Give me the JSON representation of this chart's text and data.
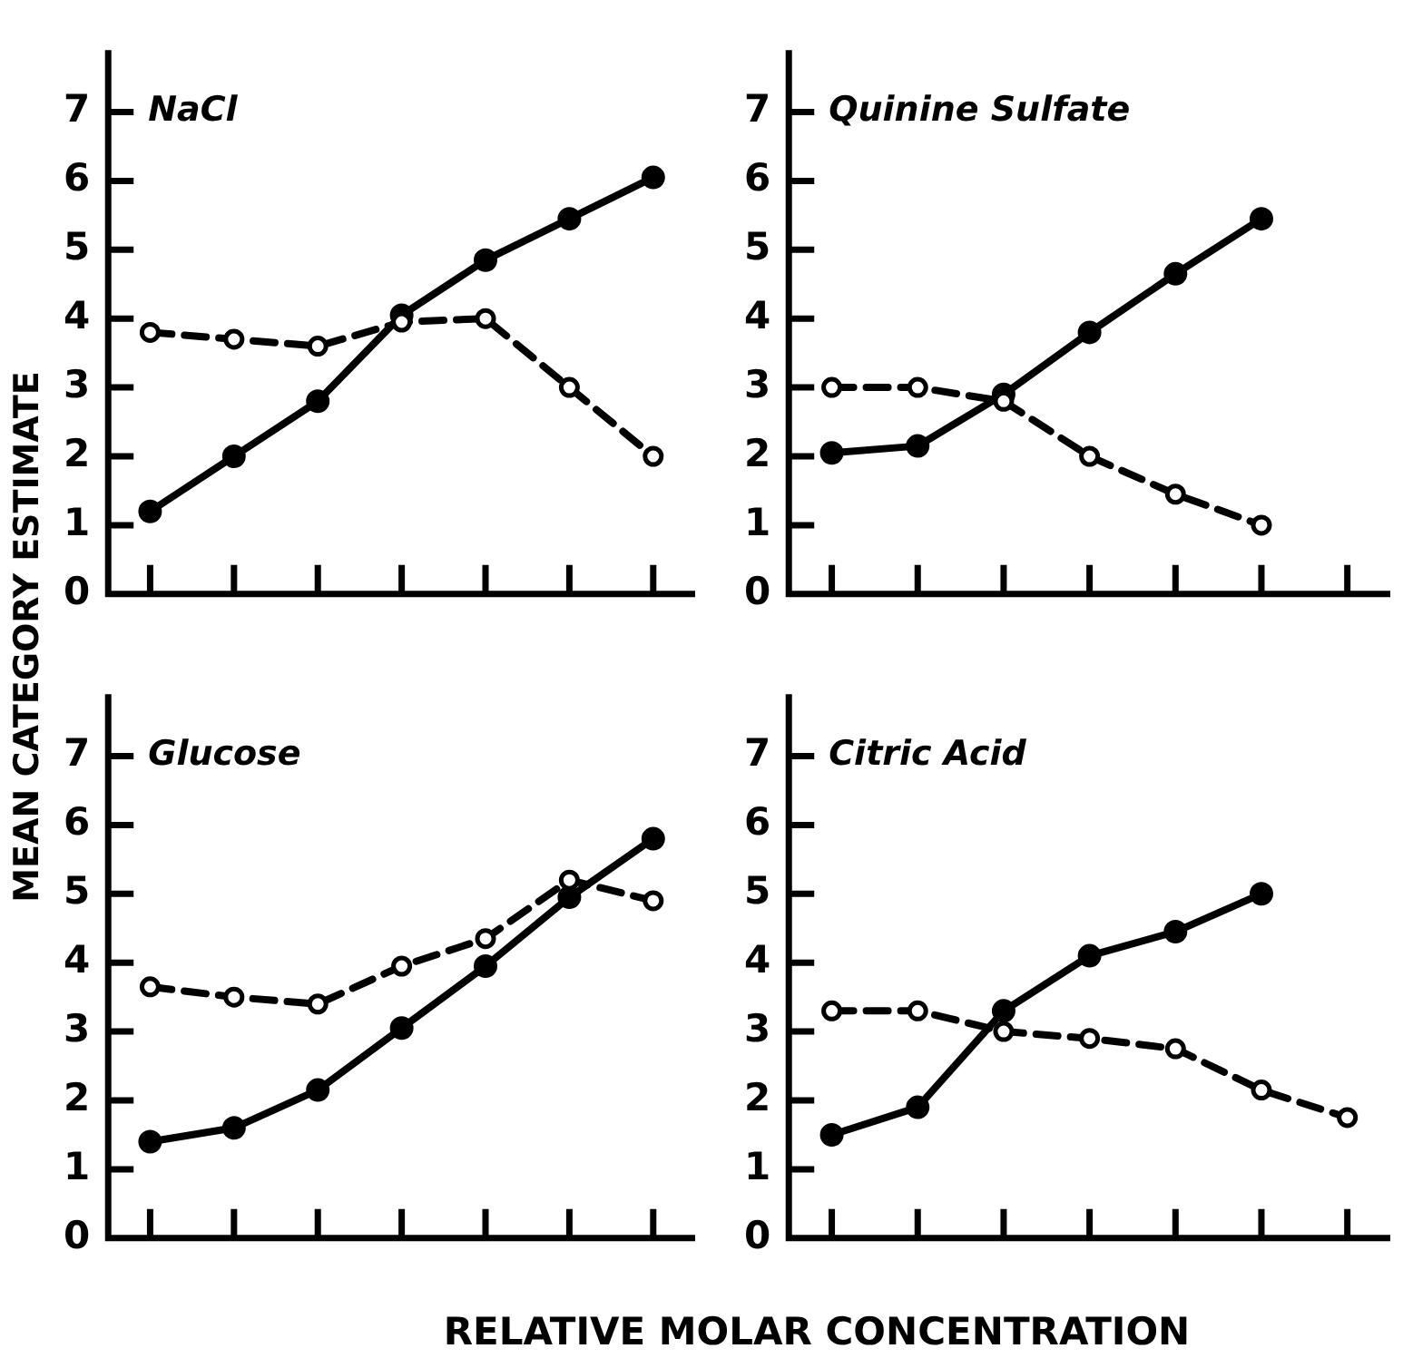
{
  "chart_data": [
    {
      "type": "line",
      "title": "NaCl",
      "ylabel": "MEAN CATEGORY ESTIMATE",
      "categories": [
        null,
        null,
        null,
        null,
        null,
        null,
        null
      ],
      "ylim": [
        0,
        7.9
      ],
      "yticks": [
        0,
        1,
        2,
        3,
        4,
        5,
        6,
        7
      ],
      "tick_labels": "y",
      "grid": false,
      "legend": false,
      "marker": "circle",
      "series": [
        {
          "color": "#000000",
          "line_style": "solid",
          "values": [
            1.2,
            2.0,
            2.8,
            4.05,
            4.85,
            5.45,
            6.05
          ]
        },
        {
          "color": "#000000",
          "line_style": "dashed",
          "values": [
            3.8,
            3.7,
            3.6,
            3.95,
            4.0,
            3.0,
            2.0
          ]
        }
      ]
    },
    {
      "type": "line",
      "title": "Quinine Sulfate",
      "categories": [
        null,
        null,
        null,
        null,
        null,
        null,
        null
      ],
      "ylim": [
        0,
        7.9
      ],
      "yticks": [
        0,
        1,
        2,
        3,
        4,
        5,
        6,
        7
      ],
      "tick_labels": "y",
      "grid": false,
      "legend": false,
      "marker": "circle",
      "series": [
        {
          "color": "#000000",
          "line_style": "solid",
          "values": [
            2.05,
            2.15,
            2.9,
            3.8,
            4.65,
            5.45,
            null
          ]
        },
        {
          "color": "#000000",
          "line_style": "dashed",
          "values": [
            3.0,
            3.0,
            2.8,
            2.0,
            1.45,
            1.0,
            null
          ]
        }
      ]
    },
    {
      "type": "line",
      "title": "Glucose",
      "xlabel": "RELATIVE MOLAR CONCENTRATION",
      "categories": [
        null,
        null,
        null,
        null,
        null,
        null,
        null
      ],
      "ylim": [
        0,
        7.9
      ],
      "yticks": [
        0,
        1,
        2,
        3,
        4,
        5,
        6,
        7
      ],
      "tick_labels": "y",
      "grid": false,
      "legend": false,
      "marker": "circle",
      "series": [
        {
          "color": "#000000",
          "line_style": "solid",
          "values": [
            1.4,
            1.6,
            2.15,
            3.05,
            3.95,
            4.95,
            5.8
          ]
        },
        {
          "color": "#000000",
          "line_style": "dashed",
          "values": [
            3.65,
            3.5,
            3.4,
            3.95,
            4.35,
            5.2,
            4.9
          ]
        }
      ]
    },
    {
      "type": "line",
      "title": "Citric Acid",
      "categories": [
        null,
        null,
        null,
        null,
        null,
        null,
        null
      ],
      "ylim": [
        0,
        7.9
      ],
      "yticks": [
        0,
        1,
        2,
        3,
        4,
        5,
        6,
        7
      ],
      "tick_labels": "y",
      "grid": false,
      "legend": false,
      "marker": "circle",
      "series": [
        {
          "color": "#000000",
          "line_style": "solid",
          "values": [
            1.5,
            1.9,
            3.3,
            4.1,
            4.45,
            5.0,
            null
          ]
        },
        {
          "color": "#000000",
          "line_style": "dashed",
          "values": [
            3.3,
            3.3,
            3.0,
            2.9,
            2.75,
            2.15,
            1.75
          ]
        }
      ]
    }
  ]
}
